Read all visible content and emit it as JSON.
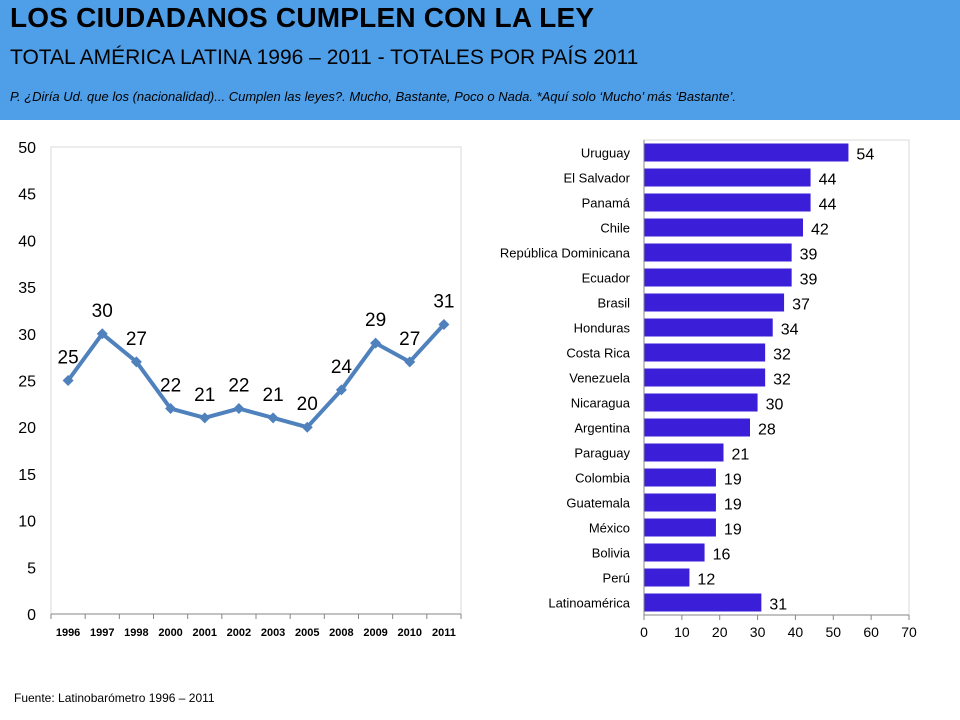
{
  "header": {
    "title": "LOS CIUDADANOS CUMPLEN CON LA LEY",
    "subtitle": "TOTAL AMÉRICA LATINA 1996 – 2011 - TOTALES POR PAÍS 2011",
    "question": "P. ¿Diría Ud. que los (nacionalidad)... Cumplen las leyes?. Mucho, Bastante, Poco o Nada. *Aquí solo ‘Mucho’ más ‘Bastante’."
  },
  "colors": {
    "header_bg": "#4f9fe8",
    "line": "#4f81bd",
    "bar": "#3a1ed8"
  },
  "chart_data": [
    {
      "type": "line",
      "title": "",
      "xlabel": "",
      "ylabel": "",
      "categories": [
        "1996",
        "1997",
        "1998",
        "2000",
        "2001",
        "2002",
        "2003",
        "2005",
        "2008",
        "2009",
        "2010",
        "2011"
      ],
      "values": [
        25,
        30,
        27,
        22,
        21,
        22,
        21,
        20,
        24,
        29,
        27,
        31
      ],
      "ylim": [
        0,
        50
      ],
      "yticks": [
        0,
        5,
        10,
        15,
        20,
        25,
        30,
        35,
        40,
        45,
        50
      ],
      "grid": false
    },
    {
      "type": "bar",
      "orientation": "horizontal",
      "title": "",
      "xlabel": "",
      "ylabel": "",
      "categories": [
        "Uruguay",
        "El Salvador",
        "Panamá",
        "Chile",
        "República Dominicana",
        "Ecuador",
        "Brasil",
        "Honduras",
        "Costa Rica",
        "Venezuela",
        "Nicaragua",
        "Argentina",
        "Paraguay",
        "Colombia",
        "Guatemala",
        "México",
        "Bolivia",
        "Perú",
        "Latinoamérica"
      ],
      "values": [
        54,
        44,
        44,
        42,
        39,
        39,
        37,
        34,
        32,
        32,
        30,
        28,
        21,
        19,
        19,
        19,
        16,
        12,
        31
      ],
      "xlim": [
        0,
        70
      ],
      "xticks": [
        0,
        10,
        20,
        30,
        40,
        50,
        60,
        70
      ],
      "grid": false
    }
  ],
  "footer": {
    "source": "Fuente:  Latinobarómetro 1996 – 2011"
  }
}
